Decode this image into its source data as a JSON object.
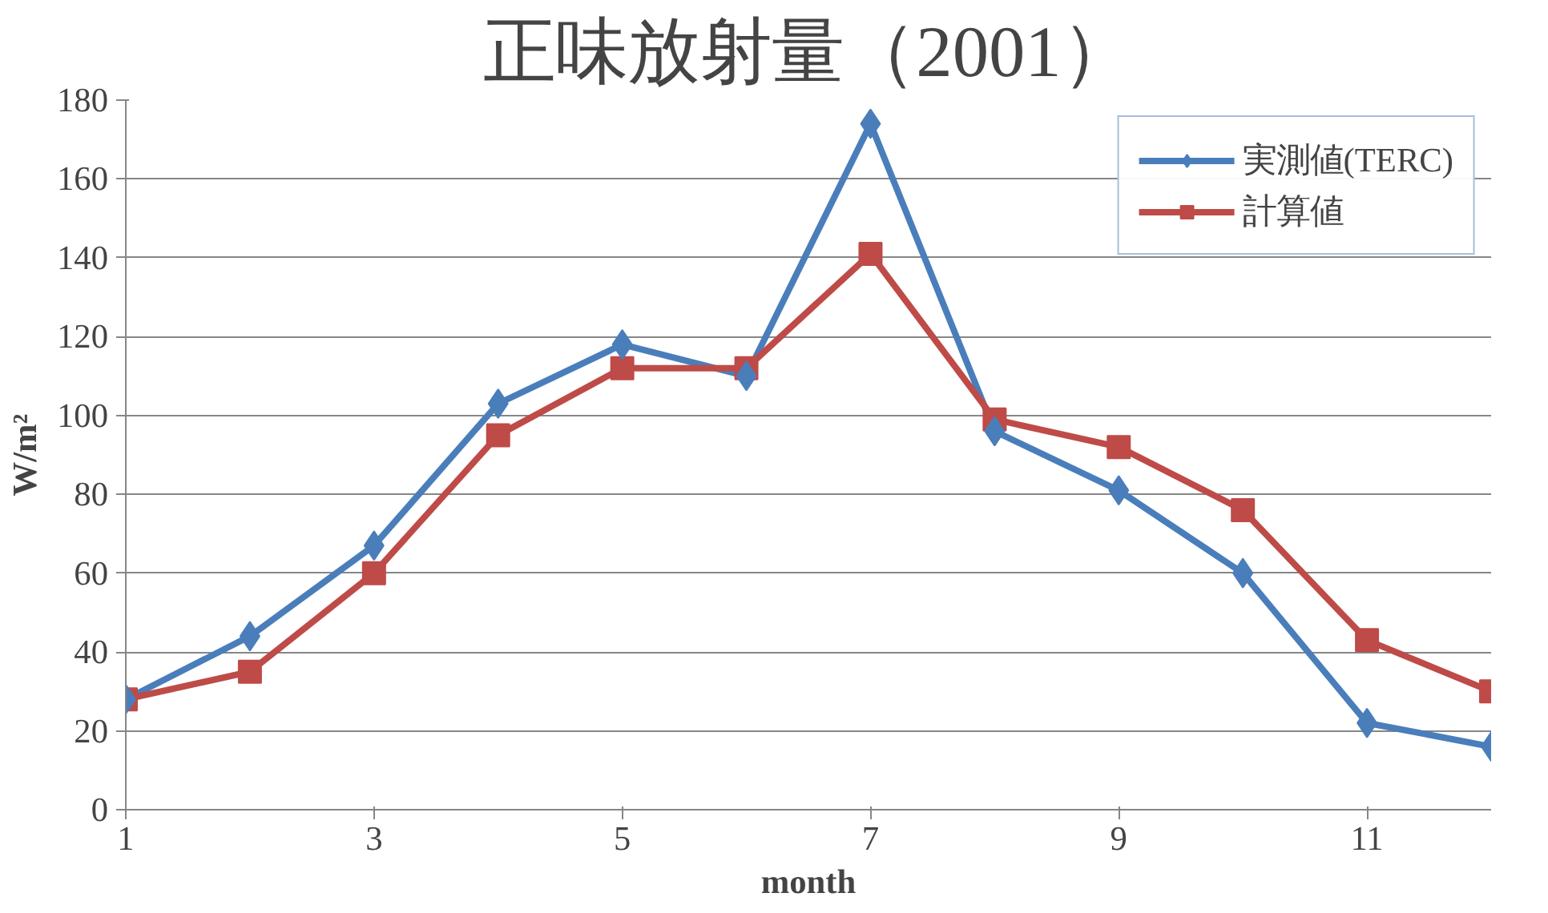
{
  "chart_data": {
    "type": "line",
    "title": "正味放射量（2001）",
    "xlabel": "month",
    "ylabel": "W/m²",
    "x": [
      1,
      2,
      3,
      4,
      5,
      6,
      7,
      8,
      9,
      10,
      11,
      12
    ],
    "series": [
      {
        "name": "実測値(TERC)",
        "color": "#4a7ebb",
        "marker": "diamond",
        "values": [
          28,
          44,
          67,
          103,
          118,
          110,
          174,
          96,
          81,
          60,
          22,
          16
        ]
      },
      {
        "name": "計算値",
        "color": "#be4b48",
        "marker": "square",
        "values": [
          28,
          35,
          60,
          95,
          112,
          112,
          141,
          99,
          92,
          76,
          43,
          30
        ]
      }
    ],
    "xlim": [
      1,
      12
    ],
    "xticks": [
      1,
      3,
      5,
      7,
      9,
      11
    ],
    "ylim": [
      0,
      180
    ],
    "yticks": [
      0,
      20,
      40,
      60,
      80,
      100,
      120,
      140,
      160,
      180
    ],
    "grid": "y",
    "legend": "top right",
    "line_style": "solid"
  }
}
